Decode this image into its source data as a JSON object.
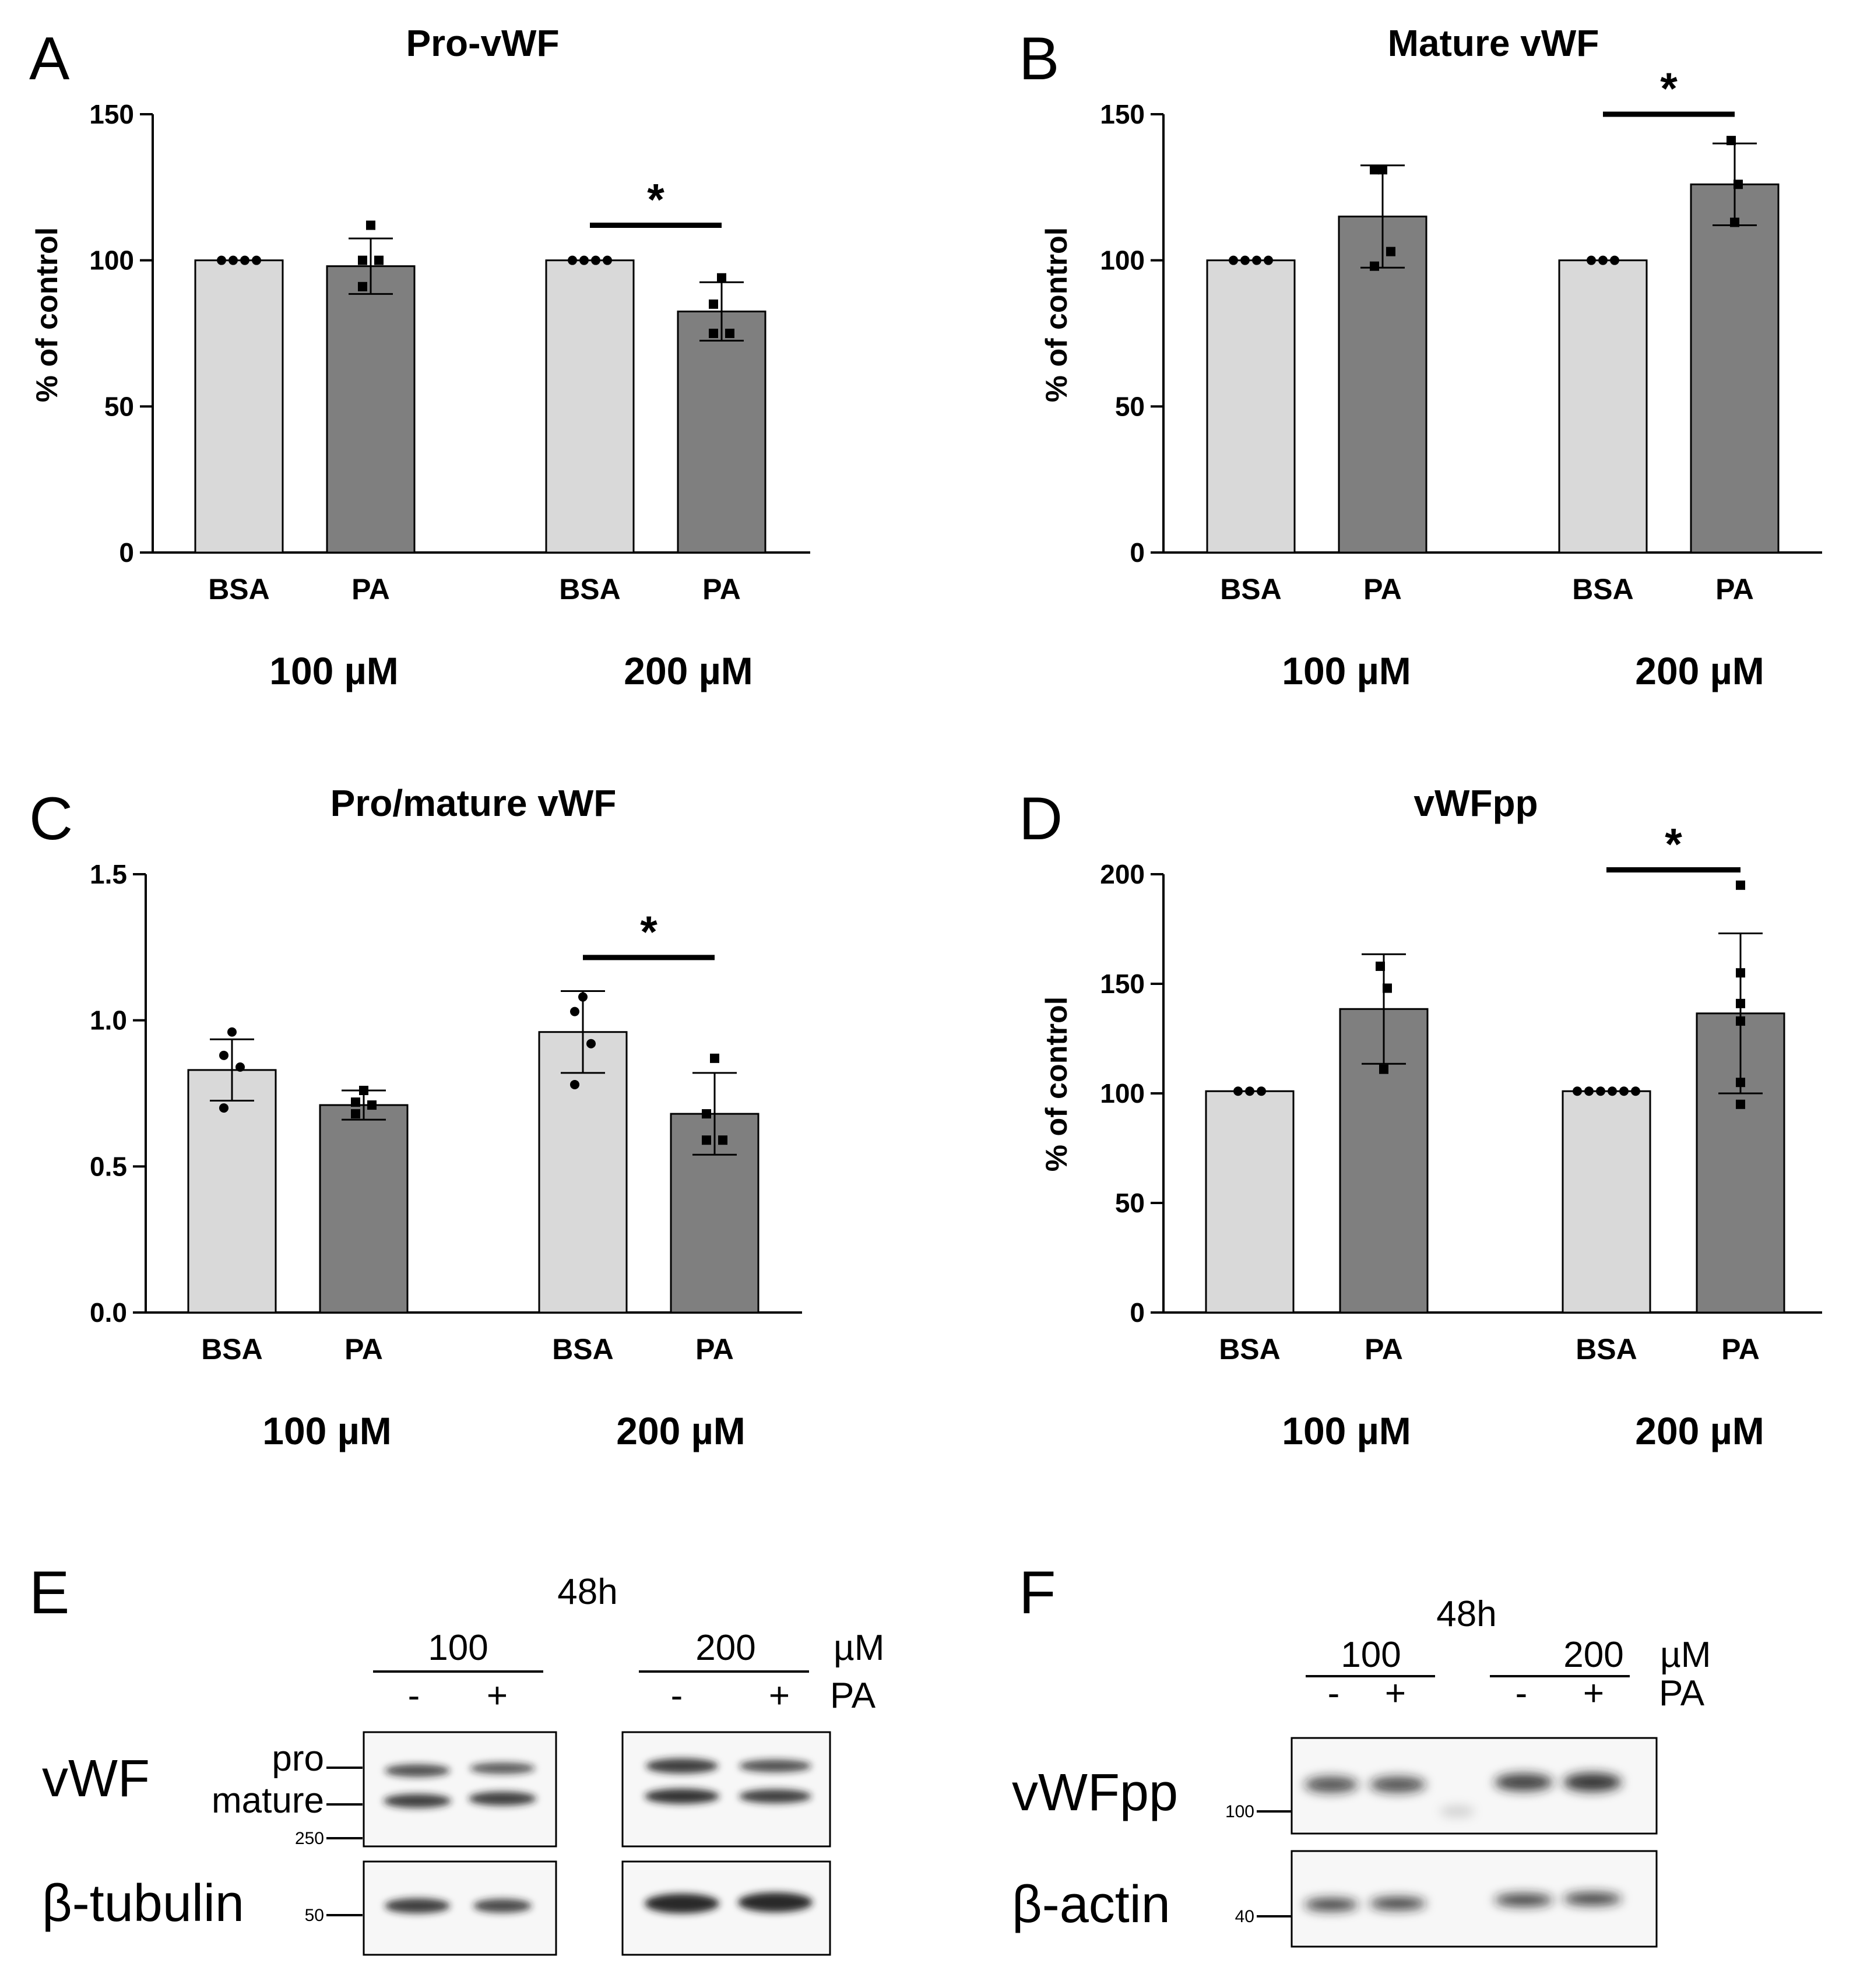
{
  "colors": {
    "bsa_bar": "#d9d9d9",
    "pa_bar": "#7f7f7f",
    "axis": "#000000",
    "blot_bg": "#f7f7f7",
    "band": "#1e1e1e"
  },
  "chart_data": [
    {
      "id": "A",
      "type": "bar",
      "letter": "A",
      "title": "Pro-vWF",
      "ylabel": "% of control",
      "ylim": [
        0,
        150
      ],
      "yticks": [
        "0",
        "50",
        "100",
        "150"
      ],
      "ytick_values": [
        0,
        50,
        100,
        150
      ],
      "groups": [
        "100 µM",
        "200 µM"
      ],
      "categories": [
        "BSA",
        "PA",
        "BSA",
        "PA"
      ],
      "series": [
        {
          "name": "BSA 100 µM",
          "value": 100,
          "sd": 0,
          "points": [
            100,
            100,
            100,
            100
          ],
          "marker": "circle"
        },
        {
          "name": "PA 100 µM",
          "value": 98,
          "sd": 9.5,
          "points": [
            112,
            100,
            100,
            91
          ],
          "marker": "square"
        },
        {
          "name": "BSA 200 µM",
          "value": 100,
          "sd": 0,
          "points": [
            100,
            100,
            100,
            100
          ],
          "marker": "circle"
        },
        {
          "name": "PA 200 µM",
          "value": 82.5,
          "sd": 10,
          "points": [
            94,
            85,
            75,
            75
          ],
          "marker": "square"
        }
      ],
      "significance": [
        {
          "from": 2,
          "to": 3,
          "y": 112,
          "label": "*"
        }
      ]
    },
    {
      "id": "B",
      "type": "bar",
      "letter": "B",
      "title": "Mature vWF",
      "ylabel": "% of control",
      "ylim": [
        0,
        150
      ],
      "yticks": [
        "0",
        "50",
        "100",
        "150"
      ],
      "ytick_values": [
        0,
        50,
        100,
        150
      ],
      "groups": [
        "100 µM",
        "200 µM"
      ],
      "categories": [
        "BSA",
        "PA",
        "BSA",
        "PA"
      ],
      "series": [
        {
          "name": "BSA 100 µM",
          "value": 100,
          "sd": 0,
          "points": [
            100,
            100,
            100,
            100
          ],
          "marker": "circle"
        },
        {
          "name": "PA 100 µM",
          "value": 115,
          "sd": 17.5,
          "points": [
            131,
            131,
            103,
            98
          ],
          "marker": "square"
        },
        {
          "name": "BSA 200 µM",
          "value": 100,
          "sd": 0,
          "points": [
            100,
            100,
            100
          ],
          "marker": "circle"
        },
        {
          "name": "PA 200 µM",
          "value": 126,
          "sd": 14,
          "points": [
            141,
            126,
            113
          ],
          "marker": "square"
        }
      ],
      "significance": [
        {
          "from": 2,
          "to": 3,
          "y": 150,
          "label": "*"
        }
      ]
    },
    {
      "id": "C",
      "type": "bar",
      "letter": "C",
      "title": "Pro/mature vWF",
      "ylabel": "",
      "ylim": [
        0,
        1.5
      ],
      "yticks": [
        "0.0",
        "0.5",
        "1.0",
        "1.5"
      ],
      "ytick_values": [
        0,
        0.5,
        1.0,
        1.5
      ],
      "groups": [
        "100 µM",
        "200 µM"
      ],
      "categories": [
        "BSA",
        "PA",
        "BSA",
        "PA"
      ],
      "series": [
        {
          "name": "BSA 100 µM",
          "value": 0.83,
          "sd": 0.105,
          "points": [
            0.96,
            0.88,
            0.84,
            0.7
          ],
          "marker": "circle"
        },
        {
          "name": "PA 100 µM",
          "value": 0.71,
          "sd": 0.05,
          "points": [
            0.76,
            0.72,
            0.71,
            0.68
          ],
          "marker": "square"
        },
        {
          "name": "BSA 200 µM",
          "value": 0.96,
          "sd": 0.14,
          "points": [
            1.08,
            1.03,
            0.92,
            0.78
          ],
          "marker": "circle"
        },
        {
          "name": "PA 200 µM",
          "value": 0.68,
          "sd": 0.14,
          "points": [
            0.87,
            0.68,
            0.59,
            0.59
          ],
          "marker": "square"
        }
      ],
      "significance": [
        {
          "from": 2,
          "to": 3,
          "y": 1.215,
          "label": "*"
        }
      ]
    },
    {
      "id": "D",
      "type": "bar",
      "letter": "D",
      "title": "vWFpp",
      "ylabel": "% of control",
      "ylim": [
        0,
        200
      ],
      "yticks": [
        "0",
        "50",
        "100",
        "150",
        "200"
      ],
      "ytick_values": [
        0,
        50,
        100,
        150,
        200
      ],
      "groups": [
        "100 µM",
        "200 µM"
      ],
      "categories": [
        "BSA",
        "PA",
        "BSA",
        "PA"
      ],
      "series": [
        {
          "name": "BSA 100 µM",
          "value": 101,
          "sd": 0,
          "points": [
            101,
            101,
            101
          ],
          "marker": "circle"
        },
        {
          "name": "PA 100 µM",
          "value": 138.5,
          "sd": 25,
          "points": [
            158,
            148,
            111
          ],
          "marker": "square"
        },
        {
          "name": "BSA 200 µM",
          "value": 101,
          "sd": 0,
          "points": [
            101,
            101,
            101,
            101,
            101,
            101
          ],
          "marker": "circle"
        },
        {
          "name": "PA 200 µM",
          "value": 136.5,
          "sd": 36.5,
          "points": [
            195,
            155,
            141,
            133,
            105,
            95
          ],
          "marker": "square"
        }
      ],
      "significance": [
        {
          "from": 2,
          "to": 3,
          "y": 202,
          "label": "*"
        }
      ]
    }
  ],
  "blots": [
    {
      "id": "E",
      "letter": "E",
      "time": "48h",
      "doses": [
        "100",
        "200"
      ],
      "dose_unit": "µM",
      "lanes": [
        "-",
        "+",
        "-",
        "+"
      ],
      "treatment": "PA",
      "rows": [
        {
          "protein": "vWF",
          "band_labels": [
            "pro",
            "mature"
          ],
          "marker": "250"
        },
        {
          "protein": "β-tubulin",
          "band_labels": [],
          "marker": "50"
        }
      ]
    },
    {
      "id": "F",
      "letter": "F",
      "time": "48h",
      "doses": [
        "100",
        "200"
      ],
      "dose_unit": "µM",
      "lanes": [
        "-",
        "+",
        "-",
        "+"
      ],
      "treatment": "PA",
      "rows": [
        {
          "protein": "vWFpp",
          "band_labels": [],
          "marker": "100"
        },
        {
          "protein": "β-actin",
          "band_labels": [],
          "marker": "40"
        }
      ]
    }
  ]
}
